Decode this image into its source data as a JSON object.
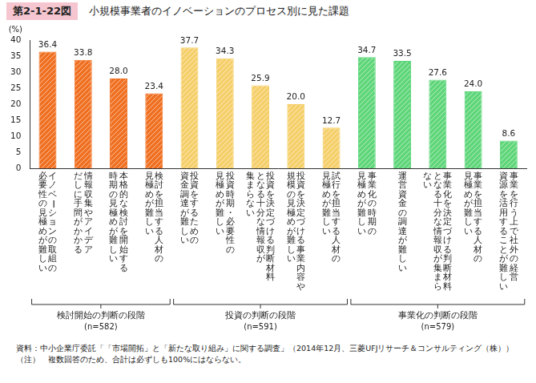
{
  "chart_data": {
    "type": "bar",
    "figure_label": "第2-1-22図",
    "title": "小規模事業者のイノベーションのプロセス別に見た課題",
    "y_label": "(%)",
    "categories": [
      [
        "イノベーションの取組の",
        "必要性の見極めが難しい"
      ],
      [
        "情報収集やアイデア",
        "だしに手間がかかる"
      ],
      [
        "本格的な検討を開始する",
        "時期の見極めが難しい"
      ],
      [
        "検討を担当する人材の",
        "見極めが難しい"
      ],
      [
        "投資をするための",
        "資金調達が難しい"
      ],
      [
        "投資時期・必要性の",
        "見極めが難しい"
      ],
      [
        "投資を決定づける判断材料",
        "となる十分な情報収が",
        "集まらない"
      ],
      [
        "投資を決定づける事業内容や",
        "規模の見極めが難しい"
      ],
      [
        "試行を担当する人材の",
        "見極めが難しい"
      ],
      [
        "事業化の時期の",
        "見極めが難しい"
      ],
      [
        "運営資金の調達が難しい"
      ],
      [
        "事業化を決定づける判断材料",
        "となる十分な情報収が集まら",
        "ない"
      ],
      [
        "事業を担当する人材の",
        "見極めが難しい"
      ],
      [
        "事業を行う上で社外の経営",
        "資源を活用することが難しい"
      ]
    ],
    "values": [
      36.4,
      33.8,
      28.0,
      23.4,
      37.7,
      34.3,
      25.9,
      20.0,
      12.7,
      34.7,
      33.5,
      27.6,
      24.0,
      8.6
    ],
    "value_labels": [
      "36.4",
      "33.8",
      "28.0",
      "23.4",
      "37.7",
      "34.3",
      "25.9",
      "20.0",
      "12.7",
      "34.7",
      "33.5",
      "27.6",
      "24.0",
      "8.6"
    ],
    "colors": [
      "#f07022",
      "#f07022",
      "#f07022",
      "#f07022",
      "#f5cf6a",
      "#f5cf6a",
      "#f5cf6a",
      "#f5cf6a",
      "#f5cf6a",
      "#5fd67a",
      "#5fd67a",
      "#5fd67a",
      "#5fd67a",
      "#5fd67a"
    ],
    "ylim": [
      0,
      40
    ],
    "yticks": [
      0,
      5,
      10,
      15,
      20,
      25,
      30,
      35,
      40
    ],
    "grid": false,
    "data_labels": true,
    "groups": [
      {
        "label": "検討開始の判断の段階",
        "note": "(n=582)",
        "first": 0,
        "last": 3
      },
      {
        "label": "投資の判断の段階",
        "note": "(n=591)",
        "first": 4,
        "last": 8
      },
      {
        "label": "事業化の判断の段階",
        "note": "(n=579)",
        "first": 9,
        "last": 13
      }
    ],
    "source": "資料：中小企業庁委託「「市場開拓」と「新たな取り組み」に関する調査」（2014年12月、三菱UFJリサーチ＆コンサルティング（株））",
    "note": "（注）　複数回答のため、合計は必ずしも100%にはならない。"
  }
}
